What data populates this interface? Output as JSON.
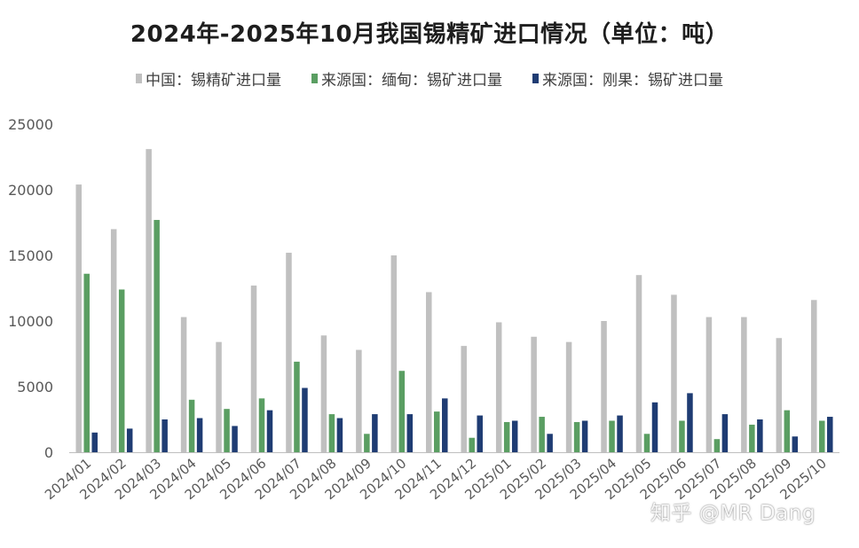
{
  "chart_data": {
    "type": "bar",
    "title": "2024年-2025年10月我国锡精矿进口情况（单位：吨）",
    "categories": [
      "2024/01",
      "2024/02",
      "2024/03",
      "2024/04",
      "2024/05",
      "2024/06",
      "2024/07",
      "2024/08",
      "2024/09",
      "2024/10",
      "2024/11",
      "2024/12",
      "2025/01",
      "2025/02",
      "2025/03",
      "2025/04",
      "2025/05",
      "2025/06",
      "2025/07",
      "2025/08",
      "2025/09",
      "2025/10"
    ],
    "series": [
      {
        "name": "中国：锡精矿进口量",
        "color": "#c0c0c0",
        "values": [
          20400,
          17000,
          23100,
          10300,
          8400,
          12700,
          15200,
          8900,
          7800,
          15000,
          12200,
          8100,
          9900,
          8800,
          8400,
          10000,
          13500,
          12000,
          10300,
          10300,
          8700,
          11600
        ]
      },
      {
        "name": "来源国：缅甸：锡矿进口量",
        "color": "#5a9e62",
        "values": [
          13600,
          12400,
          17700,
          4000,
          3300,
          4100,
          6900,
          2900,
          1400,
          6200,
          3100,
          1100,
          2300,
          2700,
          2300,
          2400,
          1400,
          2400,
          1000,
          2100,
          3200,
          2400
        ]
      },
      {
        "name": "来源国：刚果：锡矿进口量",
        "color": "#1f3c73",
        "values": [
          1500,
          1800,
          2500,
          2600,
          2000,
          3200,
          4900,
          2600,
          2900,
          2900,
          4100,
          2800,
          2400,
          1400,
          2400,
          2800,
          3800,
          4500,
          2900,
          2500,
          1200,
          2700
        ]
      }
    ],
    "y_ticks": [
      "0",
      "5000",
      "10000",
      "15000",
      "20000",
      "25000"
    ],
    "ylim": [
      0,
      25000
    ],
    "legend_position": "top",
    "grid": false
  },
  "watermark": "知乎 @MR Dang"
}
